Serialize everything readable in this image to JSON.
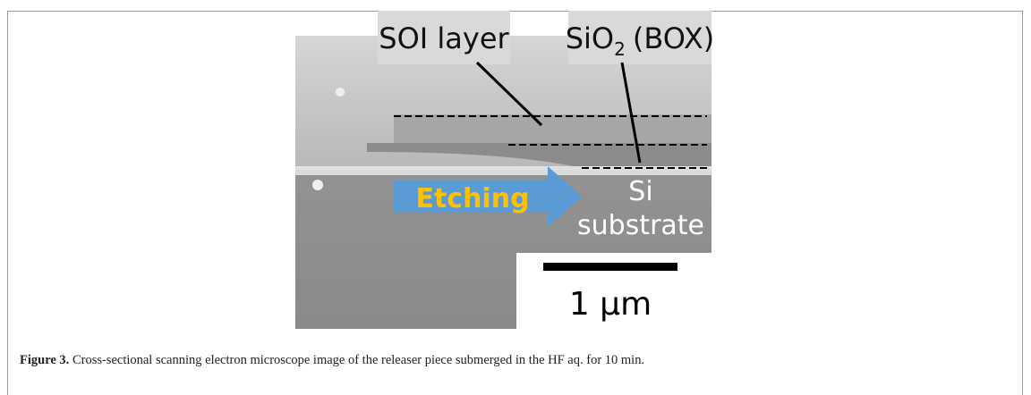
{
  "figure": {
    "labels": {
      "soi_layer": "SOI layer",
      "box_layer": {
        "base": "SiO",
        "subscript": "2",
        "suffix": "(BOX)"
      },
      "etching": "Etching",
      "substrate": [
        "Si",
        "substrate"
      ],
      "scale_bar": "1 μm"
    },
    "caption": {
      "label": "Figure 3.",
      "text": "Cross-sectional scanning electron microscope image of the releaser piece submerged in the HF aq. for 10 min."
    }
  }
}
